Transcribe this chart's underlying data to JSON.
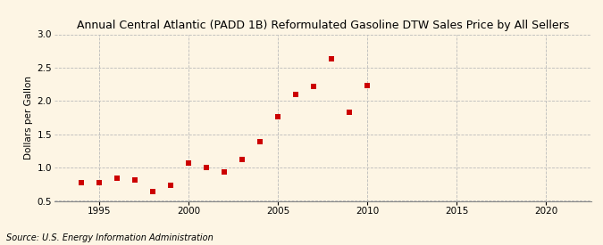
{
  "title": "Annual Central Atlantic (PADD 1B) Reformulated Gasoline DTW Sales Price by All Sellers",
  "ylabel": "Dollars per Gallon",
  "source": "Source: U.S. Energy Information Administration",
  "years": [
    1994,
    1995,
    1996,
    1997,
    1998,
    1999,
    2000,
    2001,
    2002,
    2003,
    2004,
    2005,
    2006,
    2007,
    2008,
    2009,
    2010
  ],
  "values": [
    0.78,
    0.77,
    0.84,
    0.82,
    0.64,
    0.74,
    1.07,
    1.0,
    0.93,
    1.12,
    1.39,
    1.77,
    2.1,
    2.22,
    2.63,
    1.83,
    2.23
  ],
  "ylim": [
    0.5,
    3.0
  ],
  "xlim": [
    1992.5,
    2022.5
  ],
  "xticks": [
    1995,
    2000,
    2005,
    2010,
    2015,
    2020
  ],
  "yticks": [
    0.5,
    1.0,
    1.5,
    2.0,
    2.5,
    3.0
  ],
  "marker_color": "#cc0000",
  "marker_size": 4,
  "background_color": "#fdf5e4",
  "grid_color": "#bbbbbb",
  "title_fontsize": 9,
  "label_fontsize": 7.5,
  "tick_fontsize": 7.5,
  "source_fontsize": 7
}
